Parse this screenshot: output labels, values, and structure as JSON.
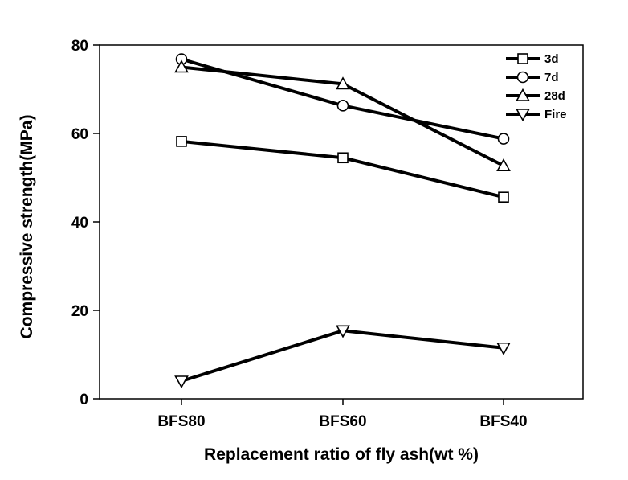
{
  "chart_data": {
    "type": "line",
    "categories": [
      "BFS80",
      "BFS60",
      "BFS40"
    ],
    "series": [
      {
        "name": "3d",
        "marker": "square",
        "values": [
          58.2,
          54.5,
          45.6
        ]
      },
      {
        "name": "7d",
        "marker": "circle",
        "values": [
          76.8,
          66.3,
          58.8
        ]
      },
      {
        "name": "28d",
        "marker": "triangle-up",
        "values": [
          75.0,
          71.2,
          52.7
        ]
      },
      {
        "name": "Fire",
        "marker": "triangle-down",
        "values": [
          4.0,
          15.4,
          11.5
        ]
      }
    ],
    "xlabel": "Replacement ratio of fly ash(wt %)",
    "ylabel": "Compressive strength(MPa)",
    "ylim": [
      0,
      80
    ],
    "yticks": [
      0,
      20,
      40,
      60,
      80
    ],
    "grid": false,
    "legend": "top-right",
    "line_color": "#000000",
    "marker_fill": "#ffffff"
  }
}
